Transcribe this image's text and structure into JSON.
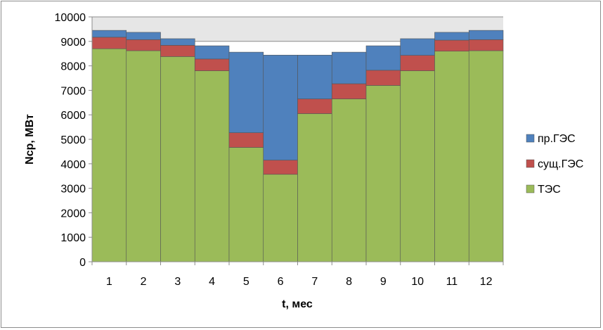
{
  "chart_data": {
    "type": "bar",
    "stacked": true,
    "title": "",
    "xlabel": "t, мес",
    "ylabel": "Nср, МВт",
    "categories": [
      "1",
      "2",
      "3",
      "4",
      "5",
      "6",
      "7",
      "8",
      "9",
      "10",
      "11",
      "12"
    ],
    "ylim": [
      0,
      10000
    ],
    "yticks": [
      0,
      1000,
      2000,
      3000,
      4000,
      5000,
      6000,
      7000,
      8000,
      9000,
      10000
    ],
    "grid": true,
    "legend_position": "right",
    "upper_band": {
      "from": 9000,
      "to": 10000,
      "color": "#e6e6e6"
    },
    "series": [
      {
        "name": "ТЭС",
        "color": "#9bbb59",
        "values": [
          8700,
          8620,
          8380,
          7800,
          4670,
          3570,
          6050,
          6650,
          7200,
          7800,
          8600,
          8620
        ]
      },
      {
        "name": "сущ.ГЭС",
        "color": "#c0504d",
        "values": [
          470,
          450,
          460,
          480,
          600,
          580,
          600,
          620,
          620,
          630,
          450,
          450
        ]
      },
      {
        "name": "пр.ГЭС",
        "color": "#4f81bd",
        "values": [
          280,
          300,
          270,
          540,
          3290,
          4290,
          1790,
          1290,
          1000,
          680,
          320,
          380
        ]
      }
    ],
    "legend_order": [
      "пр.ГЭС",
      "сущ.ГЭС",
      "ТЭС"
    ]
  }
}
